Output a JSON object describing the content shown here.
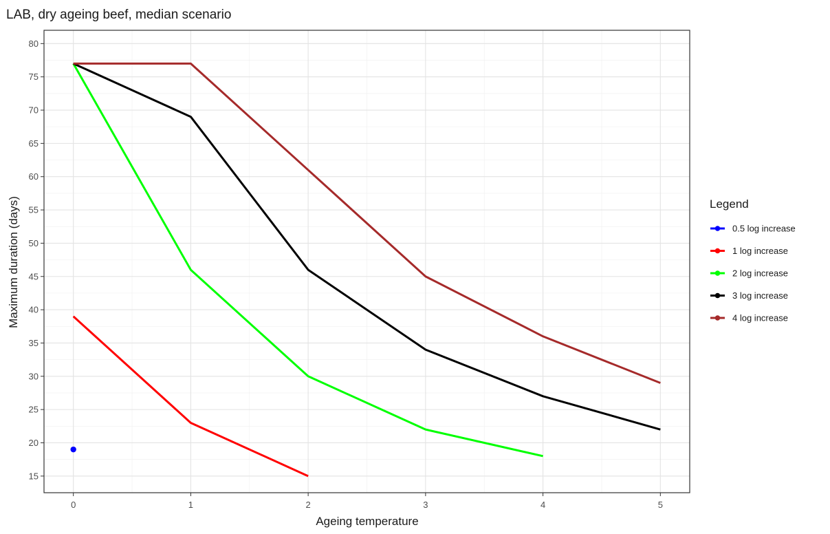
{
  "chart_data": {
    "type": "line",
    "title": "LAB, dry ageing beef, median scenario",
    "xlabel": "Ageing temperature",
    "ylabel": "Maximum duration (days)",
    "xlim": [
      -0.25,
      5.25
    ],
    "ylim": [
      12.5,
      82
    ],
    "x_ticks": [
      0,
      1,
      2,
      3,
      4,
      5
    ],
    "y_ticks": [
      15,
      20,
      25,
      30,
      35,
      40,
      45,
      50,
      55,
      60,
      65,
      70,
      75,
      80
    ],
    "grid": true,
    "legend": {
      "title": "Legend",
      "placement": "right"
    },
    "series": [
      {
        "name": "0.5 log increase",
        "color": "#0000ff",
        "x": [
          0
        ],
        "y": [
          19
        ]
      },
      {
        "name": "1 log increase",
        "color": "#ff0000",
        "x": [
          0,
          1,
          2
        ],
        "y": [
          39,
          23,
          15
        ]
      },
      {
        "name": "2 log increase",
        "color": "#00ff00",
        "x": [
          0,
          1,
          2,
          3,
          4
        ],
        "y": [
          77,
          46,
          30,
          22,
          18
        ]
      },
      {
        "name": "3 log increase",
        "color": "#000000",
        "x": [
          0,
          1,
          2,
          3,
          4,
          5
        ],
        "y": [
          77,
          69,
          46,
          34,
          27,
          22
        ]
      },
      {
        "name": "4 log increase",
        "color": "#a52a2a",
        "x": [
          0,
          1,
          2,
          3,
          4,
          5
        ],
        "y": [
          77,
          77,
          61,
          45,
          36,
          29
        ]
      }
    ]
  }
}
